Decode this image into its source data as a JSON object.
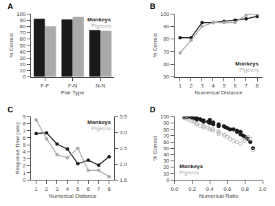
{
  "chart_data": [
    {
      "type": "bar",
      "title": "A",
      "categories": [
        "F-F",
        "F-N",
        "N-N"
      ],
      "series": [
        {
          "name": "Monkeys",
          "color": "#1a1a1a",
          "values": [
            92,
            91,
            74
          ]
        },
        {
          "name": "Pigeons",
          "color": "#aaaaaa",
          "values": [
            80,
            95,
            73
          ]
        }
      ],
      "xlabel": "Pair Type",
      "ylabel": "% Correct",
      "ylim": [
        0,
        100
      ],
      "yticks": [
        0,
        10,
        20,
        30,
        40,
        50,
        60,
        70,
        80,
        90,
        100
      ],
      "grid": false,
      "legend": "upper right"
    },
    {
      "type": "line",
      "title": "B",
      "x": [
        1,
        2,
        3,
        4,
        5,
        6,
        7,
        8
      ],
      "series": [
        {
          "name": "Monkeys",
          "color": "#1a1a1a",
          "marker": "circle",
          "values": [
            81,
            81,
            93,
            93,
            94,
            95,
            96,
            98
          ]
        },
        {
          "name": "Pigeons",
          "color": "#aaaaaa",
          "marker": "circle",
          "values": [
            69,
            79,
            90,
            93,
            93,
            93,
            99,
            100
          ]
        }
      ],
      "xlabel": "Numerical Distance",
      "ylabel": "% Correct",
      "xlim": [
        0.5,
        8.5
      ],
      "xticks": [
        1,
        2,
        3,
        4,
        5,
        6,
        7,
        8
      ],
      "ylim": [
        50,
        100
      ],
      "yticks": [
        50,
        60,
        70,
        80,
        90,
        100
      ],
      "grid": false,
      "legend": "lower right"
    },
    {
      "type": "line",
      "title": "C",
      "x": [
        1,
        2,
        3,
        4,
        5,
        6,
        7,
        8
      ],
      "series": [
        {
          "name": "Monkeys",
          "color": "#1a1a1a",
          "marker": "circle",
          "values": [
            6.6,
            6.7,
            5.1,
            4.4,
            2.3,
            2.8,
            2.1,
            3.3
          ]
        },
        {
          "name": "Pigeons",
          "color": "#aaaaaa",
          "marker": "circle",
          "axis": "y2",
          "values": [
            3.4,
            2.8,
            2.3,
            2.2,
            2.5,
            1.8,
            1.8,
            1.6
          ]
        }
      ],
      "xlabel": "Numerical Distance",
      "ylabel": "Response Time (sec)",
      "xlim": [
        0.5,
        8.5
      ],
      "xticks": [
        1,
        2,
        3,
        4,
        5,
        6,
        7,
        8
      ],
      "ylim": [
        0,
        9
      ],
      "yticks": [
        0,
        1,
        2,
        3,
        4,
        5,
        6,
        7,
        8,
        9
      ],
      "y2lim": [
        1.5,
        3.5
      ],
      "y2ticks": [
        1.5,
        {
          "value": 2.0,
          "label": "2.0"
        },
        2.5,
        {
          "value": 3.0,
          "label": "3.0"
        },
        3.5
      ],
      "grid": false,
      "legend": "upper right"
    },
    {
      "type": "scatter",
      "title": "D",
      "series": [
        {
          "name": "Monkeys",
          "color": "#1a1a1a",
          "marker": "circle",
          "x": [
            0.11,
            0.12,
            0.14,
            0.14,
            0.17,
            0.18,
            0.2,
            0.2,
            0.22,
            0.25,
            0.25,
            0.25,
            0.29,
            0.3,
            0.33,
            0.33,
            0.33,
            0.38,
            0.4,
            0.4,
            0.43,
            0.44,
            0.44,
            0.5,
            0.5,
            0.5,
            0.56,
            0.57,
            0.6,
            0.63,
            0.67,
            0.71,
            0.71,
            0.75,
            0.75,
            0.78,
            0.8,
            0.83,
            0.86,
            0.89
          ],
          "values": [
            100,
            100,
            100,
            99,
            100,
            99,
            100,
            98,
            98,
            98,
            97,
            95,
            96,
            95,
            94,
            93,
            92,
            92,
            95,
            90,
            90,
            91,
            88,
            88,
            87,
            85,
            85,
            84,
            82,
            80,
            80,
            78,
            76,
            76,
            72,
            70,
            68,
            65,
            60,
            50
          ]
        },
        {
          "name": "Pigeons",
          "color": "#aaaaaa",
          "marker": "circle-open",
          "x": [
            0.11,
            0.14,
            0.17,
            0.2,
            0.22,
            0.25,
            0.25,
            0.29,
            0.33,
            0.33,
            0.38,
            0.4,
            0.43,
            0.44,
            0.5,
            0.5,
            0.5,
            0.56,
            0.57,
            0.6,
            0.63,
            0.67,
            0.71,
            0.75,
            0.78,
            0.8,
            0.83,
            0.86,
            0.89
          ],
          "values": [
            98,
            96,
            95,
            93,
            92,
            90,
            88,
            86,
            85,
            83,
            82,
            80,
            80,
            78,
            77,
            75,
            73,
            72,
            70,
            68,
            65,
            62,
            60,
            57,
            64,
            62,
            68,
            65,
            47
          ]
        }
      ],
      "xlabel": "Numerical Ratio",
      "ylabel": "% Correct",
      "xlim": [
        0,
        1.0
      ],
      "xticks": [
        {
          "value": 0,
          "label": "0.0"
        },
        0.2,
        0.4,
        0.6,
        0.8,
        {
          "value": 1.0,
          "label": "1.0"
        }
      ],
      "ylim": [
        0,
        100
      ],
      "yticks": [
        0,
        10,
        20,
        30,
        40,
        50,
        60,
        70,
        80,
        90,
        100
      ],
      "grid": false,
      "legend": "lower left"
    }
  ]
}
